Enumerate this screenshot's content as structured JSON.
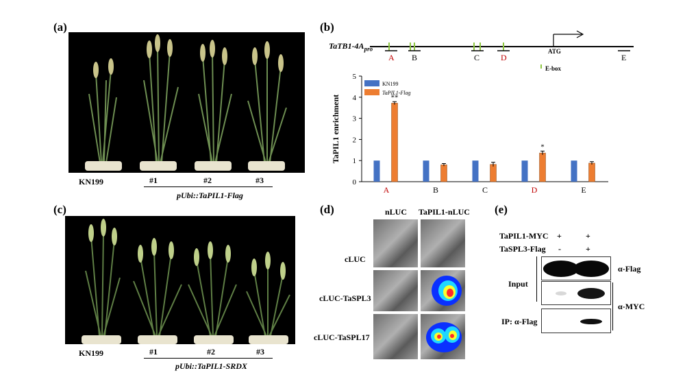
{
  "panels": {
    "a": {
      "label": "(a)",
      "plants": [
        "KN199",
        "#1",
        "#2",
        "#3"
      ],
      "construct": "pUbi::TaPIL1-Flag"
    },
    "b": {
      "label": "(b)",
      "promoter": "TaTB1-4A",
      "promoter_sub": "pro",
      "regions": [
        "A",
        "B",
        "C",
        "D",
        "E"
      ],
      "atg": "ATG",
      "ebox_label": "E-box",
      "significance": [
        "**",
        "*"
      ]
    },
    "c": {
      "label": "(c)",
      "plants": [
        "KN199",
        "#1",
        "#2",
        "#3"
      ],
      "construct": "pUbi::TaPIL1-SRDX"
    },
    "d": {
      "label": "(d)",
      "cols": [
        "nLUC",
        "TaPIL1-nLUC"
      ],
      "rows": [
        "cLUC",
        "cLUC-TaSPL3",
        "cLUC-TaSPL17"
      ]
    },
    "e": {
      "label": "(e)",
      "rows": [
        {
          "name": "TaPIL1-MYC",
          "lane1": "+",
          "lane2": "+"
        },
        {
          "name": "TaSPL3-Flag",
          "lane1": "-",
          "lane2": "+"
        }
      ],
      "input_label": "Input",
      "ip_label": "IP: α-Flag",
      "blot_flag": "α-Flag",
      "blot_myc": "α-MYC"
    }
  },
  "chart_data": {
    "type": "bar",
    "categories": [
      "A",
      "B",
      "C",
      "D",
      "E"
    ],
    "category_colors": [
      "#c00000",
      "#000000",
      "#000000",
      "#c00000",
      "#000000"
    ],
    "ylabel": "TaPIL1 enrichment",
    "ylim": [
      0,
      5
    ],
    "yticks": [
      "0",
      "1",
      "2",
      "3",
      "4",
      "5"
    ],
    "series": [
      {
        "name": "KN199",
        "color": "#4472c4",
        "values": [
          1,
          1,
          1,
          1,
          1
        ]
      },
      {
        "name": "TaPIL1-Flag",
        "color": "#ed7d31",
        "values": [
          3.72,
          0.8,
          0.82,
          1.36,
          0.88
        ],
        "errors": [
          0.07,
          0.06,
          0.1,
          0.09,
          0.07
        ]
      }
    ],
    "annotations": [
      {
        "category": "A",
        "text": "**"
      },
      {
        "category": "D",
        "text": "*"
      }
    ]
  }
}
